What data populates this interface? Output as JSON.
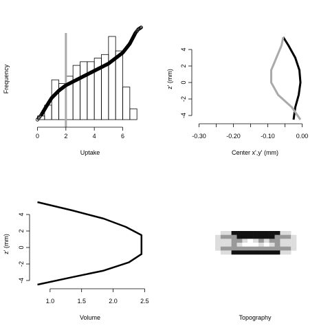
{
  "chart_data": [
    {
      "id": "uptake",
      "type": "bar",
      "title": "",
      "xlabel": "Uptake",
      "ylabel": "Frequency",
      "xlim": [
        0,
        7.5
      ],
      "xticks": [
        "0",
        "2",
        "4",
        "6"
      ],
      "ylim": [
        0,
        23
      ],
      "bins": [
        {
          "x0": 0.0,
          "x1": 0.5,
          "value": 1
        },
        {
          "x0": 0.5,
          "x1": 1.0,
          "value": 4
        },
        {
          "x0": 1.0,
          "x1": 1.5,
          "value": 11
        },
        {
          "x0": 1.5,
          "x1": 2.0,
          "value": 10
        },
        {
          "x0": 2.0,
          "x1": 2.5,
          "value": 12
        },
        {
          "x0": 2.5,
          "x1": 3.0,
          "value": 15
        },
        {
          "x0": 3.0,
          "x1": 3.5,
          "value": 16
        },
        {
          "x0": 3.5,
          "x1": 4.0,
          "value": 16
        },
        {
          "x0": 4.0,
          "x1": 4.5,
          "value": 17
        },
        {
          "x0": 4.5,
          "x1": 5.0,
          "value": 18
        },
        {
          "x0": 5.0,
          "x1": 5.5,
          "value": 23
        },
        {
          "x0": 5.5,
          "x1": 6.0,
          "value": 19
        },
        {
          "x0": 6.0,
          "x1": 6.5,
          "value": 9
        },
        {
          "x0": 6.5,
          "x1": 7.0,
          "value": 3
        }
      ],
      "vline": {
        "x": 2,
        "color": "#aaaaaa"
      },
      "overlay_points": {
        "type": "scatter",
        "note_axis": "x in Uptake units; y rescaled to the histogram Frequency scale",
        "points": [
          [
            0,
            0
          ],
          [
            0.3,
            1.5
          ],
          [
            0.6,
            3.5
          ],
          [
            1.0,
            6
          ],
          [
            1.5,
            8
          ],
          [
            2,
            9.5
          ],
          [
            2.5,
            10.5
          ],
          [
            3,
            11.5
          ],
          [
            3.5,
            12.5
          ],
          [
            4,
            13.5
          ],
          [
            4.5,
            14.5
          ],
          [
            5,
            15.5
          ],
          [
            5.5,
            17
          ],
          [
            6,
            18.5
          ],
          [
            6.5,
            21
          ],
          [
            6.9,
            24
          ],
          [
            7.1,
            25
          ],
          [
            7.3,
            25.5
          ]
        ]
      }
    },
    {
      "id": "center",
      "type": "line",
      "title": "",
      "xlabel": "Center x',y' (mm)",
      "ylabel": "z' (mm)",
      "xlim": [
        -0.3,
        0.0
      ],
      "xticks": [
        "-0.30",
        "-0.20",
        "-0.10",
        "0.00"
      ],
      "ylim": [
        -4.5,
        5.5
      ],
      "yticks": [
        "-4",
        "-2",
        "0",
        "2",
        "4"
      ],
      "series": [
        {
          "color": "#000000",
          "points": [
            [
              -0.025,
              -4.5
            ],
            [
              -0.02,
              -3
            ],
            [
              -0.01,
              -1.5
            ],
            [
              -0.005,
              0
            ],
            [
              -0.008,
              1.5
            ],
            [
              -0.02,
              3
            ],
            [
              -0.04,
              4.5
            ],
            [
              -0.055,
              5.5
            ]
          ]
        },
        {
          "color": "#aaaaaa",
          "points": [
            [
              -0.005,
              -4.5
            ],
            [
              -0.03,
              -3
            ],
            [
              -0.07,
              -1.5
            ],
            [
              -0.09,
              0
            ],
            [
              -0.09,
              1.5
            ],
            [
              -0.075,
              3
            ],
            [
              -0.06,
              4.5
            ],
            [
              -0.055,
              5.5
            ]
          ]
        }
      ]
    },
    {
      "id": "volume",
      "type": "line",
      "title": "",
      "xlabel": "Volume",
      "ylabel": "z' (mm)",
      "xlim": [
        0.8,
        2.55
      ],
      "xticks": [
        "1.0",
        "1.5",
        "2.0",
        "2.5"
      ],
      "ylim": [
        -4.5,
        5.5
      ],
      "yticks": [
        "-4",
        "-2",
        "0",
        "2",
        "4"
      ],
      "series": [
        {
          "color": "#000000",
          "points": [
            [
              0.8,
              5.5
            ],
            [
              1.35,
              4.5
            ],
            [
              1.85,
              3.5
            ],
            [
              2.2,
              2.5
            ],
            [
              2.45,
              1.5
            ],
            [
              2.45,
              -0.8
            ],
            [
              2.25,
              -1.8
            ],
            [
              1.85,
              -2.8
            ],
            [
              1.35,
              -3.6
            ],
            [
              0.8,
              -4.5
            ]
          ]
        }
      ]
    },
    {
      "id": "topography",
      "type": "heatmap",
      "title": "",
      "xlabel": "Topography",
      "rows": [
        [
          1,
          1,
          1,
          3,
          3,
          3,
          3,
          3,
          3,
          3,
          3,
          3,
          1,
          1,
          1
        ],
        [
          1,
          2,
          2,
          2,
          3,
          3,
          3,
          3,
          3,
          3,
          3,
          2,
          2,
          2,
          1
        ],
        [
          1,
          1,
          1,
          2,
          2,
          1,
          0,
          1,
          2,
          1,
          2,
          2,
          1,
          1,
          1
        ],
        [
          1,
          1,
          1,
          2,
          1,
          0,
          0,
          0,
          1,
          0,
          1,
          2,
          1,
          1,
          1
        ],
        [
          1,
          2,
          2,
          2,
          2,
          2,
          2,
          2,
          2,
          2,
          2,
          2,
          2,
          2,
          1
        ],
        [
          1,
          1,
          1,
          3,
          3,
          3,
          3,
          3,
          3,
          3,
          3,
          3,
          1,
          1,
          1
        ]
      ],
      "colors": {
        "0": "#ffffff",
        "1": "#dddddd",
        "2": "#999999",
        "3": "#111111"
      }
    }
  ]
}
